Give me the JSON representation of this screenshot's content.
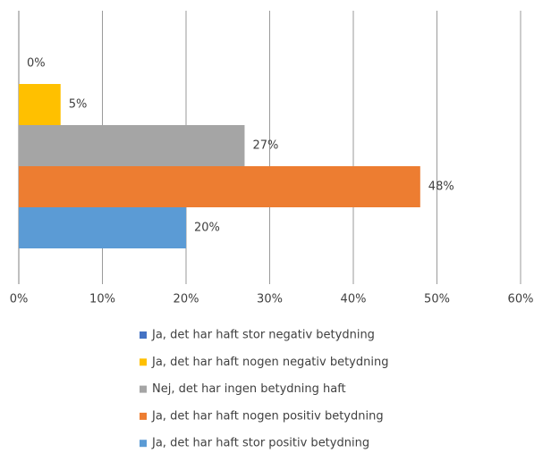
{
  "chart_data": {
    "type": "bar",
    "orientation": "horizontal",
    "categories": [
      null
    ],
    "series": [
      {
        "name": "Ja, det har haft stor negativ betydning",
        "color": "#4472c4",
        "values": [
          0
        ],
        "value_labels": [
          "0%"
        ]
      },
      {
        "name": "Ja, det har haft nogen negativ betydning",
        "color": "#ffc000",
        "values": [
          5
        ],
        "value_labels": [
          "5%"
        ]
      },
      {
        "name": "Nej, det har ingen betydning haft",
        "color": "#a5a5a5",
        "values": [
          27
        ],
        "value_labels": [
          "27%"
        ]
      },
      {
        "name": "Ja, det har haft nogen positiv betydning",
        "color": "#ed7d31",
        "values": [
          48
        ],
        "value_labels": [
          "48%"
        ]
      },
      {
        "name": "Ja, det har haft stor positiv betydning",
        "color": "#5b9bd5",
        "values": [
          20
        ],
        "value_labels": [
          "20%"
        ]
      }
    ],
    "xlim": [
      0,
      60
    ],
    "xticks": [
      {
        "value": 0,
        "label": "0%"
      },
      {
        "value": 10,
        "label": "10%"
      },
      {
        "value": 20,
        "label": "20%"
      },
      {
        "value": 30,
        "label": "30%"
      },
      {
        "value": 40,
        "label": "40%"
      },
      {
        "value": 50,
        "label": "50%"
      },
      {
        "value": 60,
        "label": "60%"
      }
    ],
    "grid": true,
    "legend": "bottom"
  }
}
